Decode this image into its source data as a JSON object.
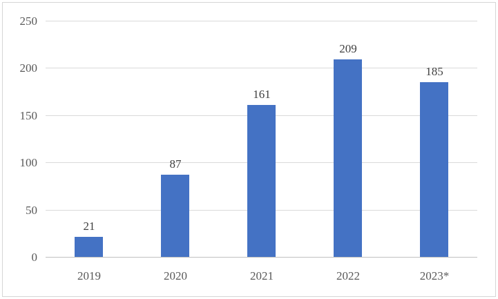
{
  "chart_data": {
    "type": "bar",
    "categories": [
      "2019",
      "2020",
      "2021",
      "2022",
      "2023*"
    ],
    "values": [
      21,
      87,
      161,
      209,
      185
    ],
    "data_labels": [
      "21",
      "87",
      "161",
      "209",
      "185"
    ],
    "title": "",
    "xlabel": "",
    "ylabel": "",
    "ylim": [
      0,
      250
    ],
    "yticks": [
      0,
      50,
      100,
      150,
      200,
      250
    ],
    "ytick_labels": [
      "0",
      "50",
      "100",
      "150",
      "200",
      "250"
    ],
    "grid": true,
    "legend_position": "none",
    "colors": {
      "bar": "#4472c4",
      "gridline": "#d9d9d9",
      "axis_line": "#bfbfbf",
      "tick_label": "#595959",
      "data_label": "#404040",
      "frame_border": "#d6d6d6",
      "background": "#ffffff"
    }
  }
}
